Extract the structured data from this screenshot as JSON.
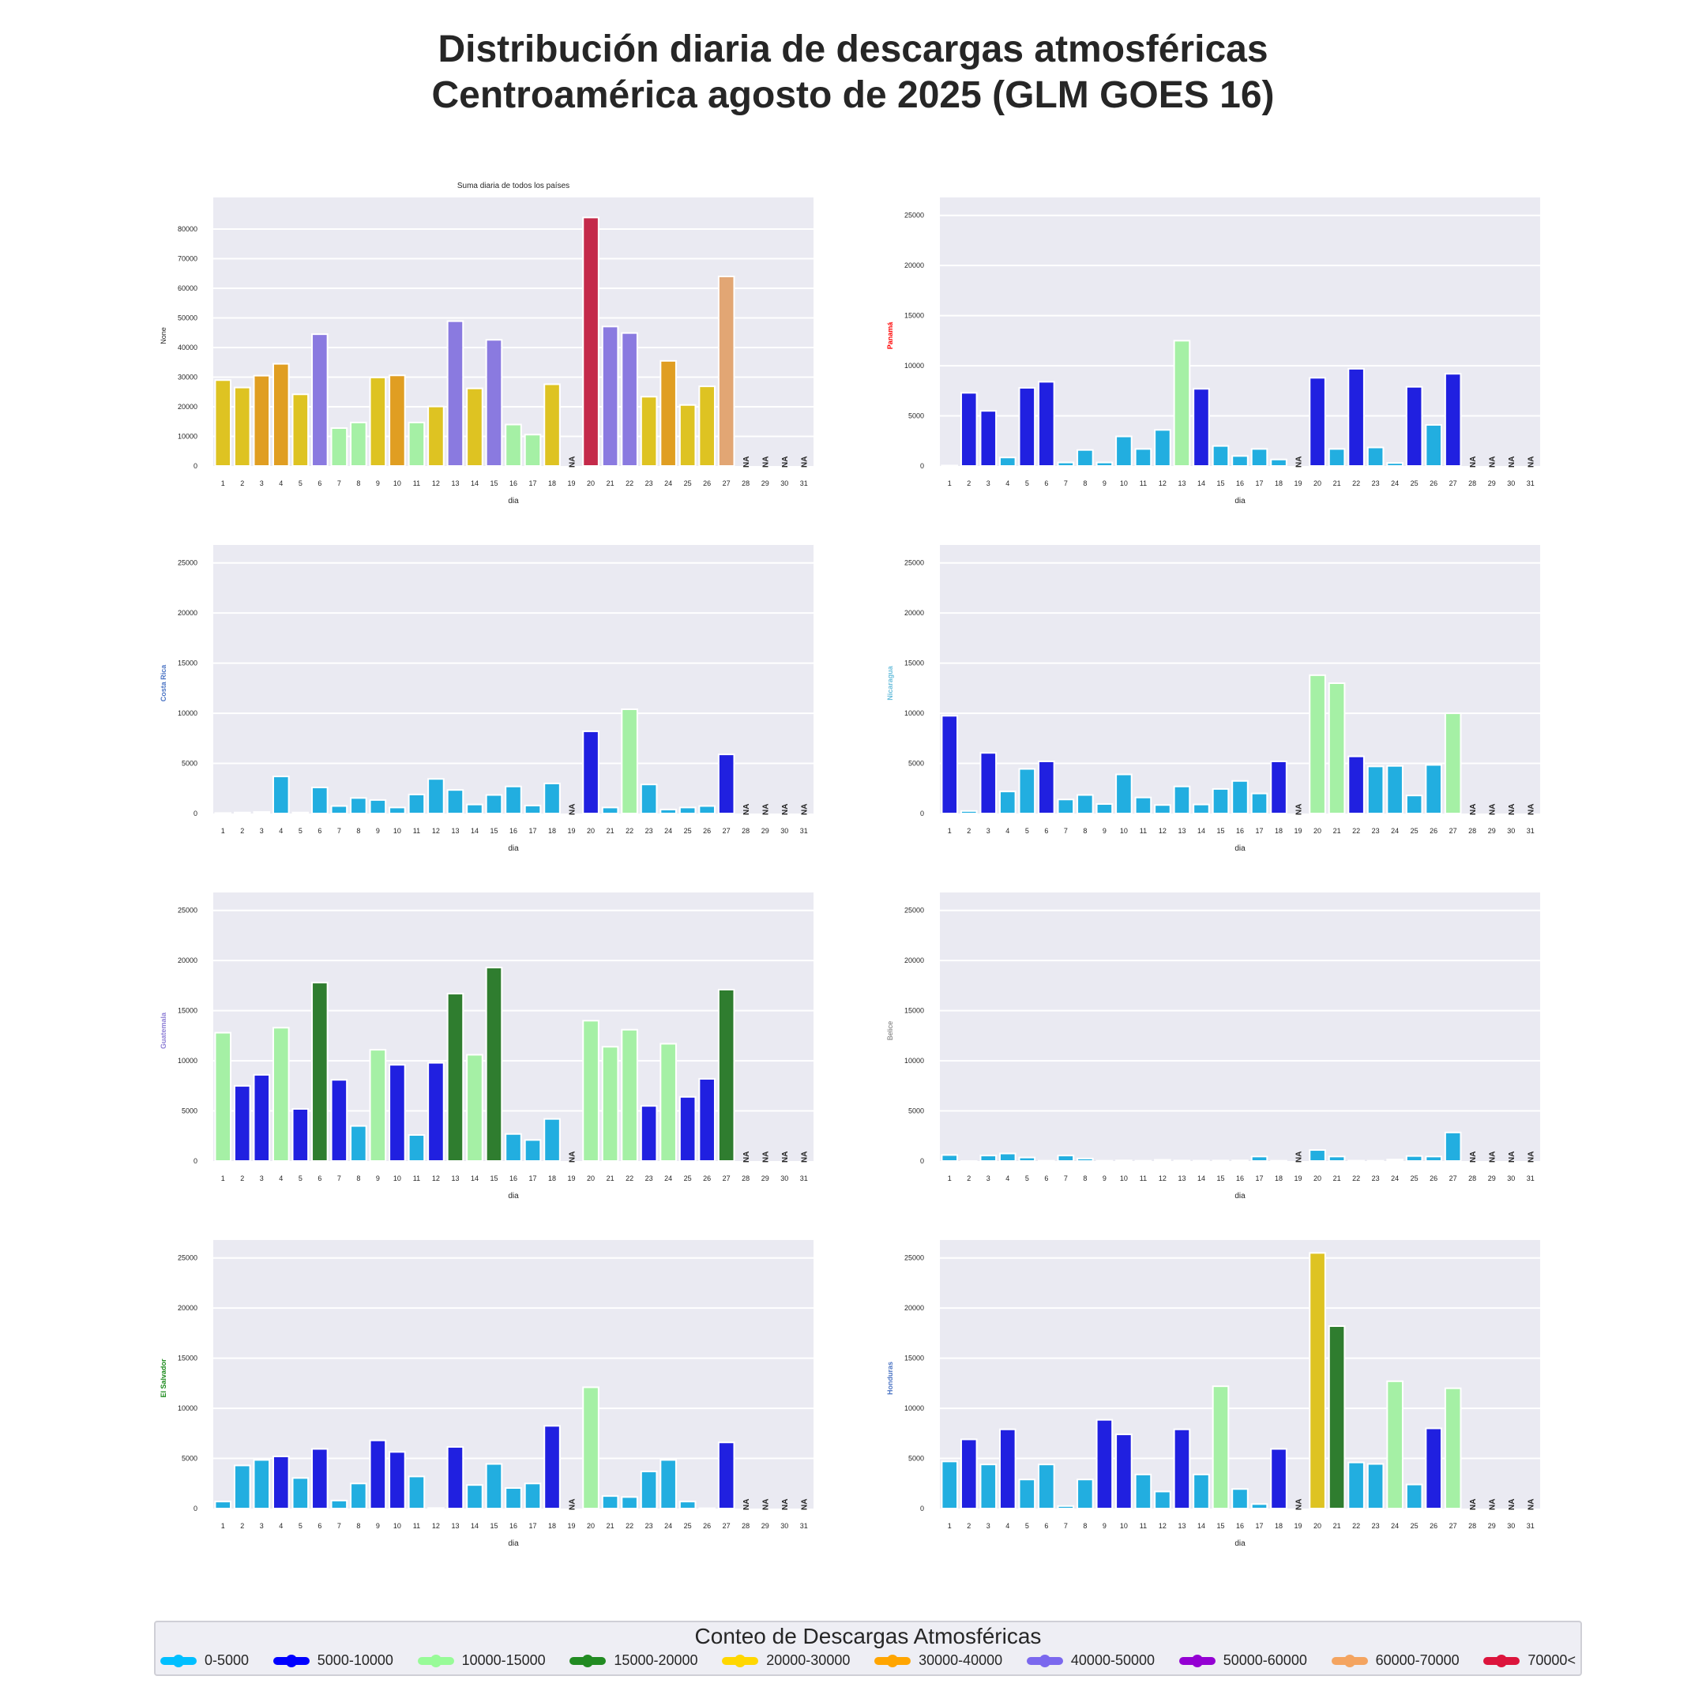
{
  "title": {
    "line1": "Distribución diaria de descargas atmosféricas",
    "line2": "Centroamérica agosto de 2025 (GLM GOES 16)"
  },
  "legend": {
    "title": "Conteo de Descargas Atmosféricas",
    "items": [
      {
        "label": "0-5000",
        "color": "#00bfff"
      },
      {
        "label": "5000-10000",
        "color": "#0000ff"
      },
      {
        "label": "10000-15000",
        "color": "#98fb98"
      },
      {
        "label": "15000-20000",
        "color": "#228b22"
      },
      {
        "label": "20000-30000",
        "color": "#ffd700"
      },
      {
        "label": "30000-40000",
        "color": "#ffa500"
      },
      {
        "label": "40000-50000",
        "color": "#7b68ee"
      },
      {
        "label": "50000-60000",
        "color": "#9400d3"
      },
      {
        "label": "60000-70000",
        "color": "#f4a460"
      },
      {
        "label": "70000<",
        "color": "#dc143c"
      }
    ]
  },
  "bin_colors": {
    "0-5000": "#22aee0",
    "5000-10000": "#2020e0",
    "10000-15000": "#a5f0a5",
    "15000-20000": "#2f7d2f",
    "20000-30000": "#dec322",
    "30000-40000": "#e09e22",
    "40000-50000": "#8a7ae0",
    "50000-60000": "#8a22c2",
    "60000-70000": "#e2a674",
    "70000<": "#c42a4a"
  },
  "na_label": "NA",
  "chart_data": [
    {
      "type": "bar",
      "id": "total",
      "title": "Suma diaria de todos los países",
      "xlabel": "dia",
      "ylabel": "None",
      "ylabel_color": "#262626",
      "ylim": [
        0,
        88000
      ],
      "yticks": [
        0,
        10000,
        20000,
        30000,
        40000,
        50000,
        60000,
        70000,
        80000
      ],
      "categories": [
        "1",
        "2",
        "3",
        "4",
        "5",
        "6",
        "7",
        "8",
        "9",
        "10",
        "11",
        "12",
        "13",
        "14",
        "15",
        "16",
        "17",
        "18",
        "19",
        "20",
        "21",
        "22",
        "23",
        "24",
        "25",
        "26",
        "27",
        "28",
        "29",
        "30",
        "31"
      ],
      "values": [
        29000,
        26500,
        30500,
        34500,
        24200,
        44500,
        12800,
        14700,
        29900,
        30600,
        14700,
        20100,
        48900,
        26200,
        42600,
        14000,
        10600,
        27600,
        null,
        83900,
        47100,
        44900,
        23400,
        35500,
        20600,
        26900,
        64000,
        null,
        null,
        null,
        null
      ]
    },
    {
      "type": "bar",
      "id": "panama",
      "title": "",
      "xlabel": "dia",
      "ylabel": "Panamá",
      "ylabel_color": "#ff0000",
      "ylim": [
        0,
        26000
      ],
      "yticks": [
        0,
        5000,
        10000,
        15000,
        20000,
        25000
      ],
      "categories": [
        "1",
        "2",
        "3",
        "4",
        "5",
        "6",
        "7",
        "8",
        "9",
        "10",
        "11",
        "12",
        "13",
        "14",
        "15",
        "16",
        "17",
        "18",
        "19",
        "20",
        "21",
        "22",
        "23",
        "24",
        "25",
        "26",
        "27",
        "28",
        "29",
        "30",
        "31"
      ],
      "values": [
        50,
        7300,
        5500,
        850,
        7800,
        8400,
        350,
        1600,
        350,
        2950,
        1700,
        3600,
        12500,
        7700,
        2000,
        1000,
        1700,
        650,
        null,
        8800,
        1700,
        9700,
        1850,
        300,
        7900,
        4100,
        9200,
        null,
        null,
        null,
        null
      ]
    },
    {
      "type": "bar",
      "id": "costa-rica",
      "title": "",
      "xlabel": "dia",
      "ylabel": "Costa Rica",
      "ylabel_color": "#4b74c4",
      "ylim": [
        0,
        26000
      ],
      "yticks": [
        0,
        5000,
        10000,
        15000,
        20000,
        25000
      ],
      "categories": [
        "1",
        "2",
        "3",
        "4",
        "5",
        "6",
        "7",
        "8",
        "9",
        "10",
        "11",
        "12",
        "13",
        "14",
        "15",
        "16",
        "17",
        "18",
        "19",
        "20",
        "21",
        "22",
        "23",
        "24",
        "25",
        "26",
        "27",
        "28",
        "29",
        "30",
        "31"
      ],
      "values": [
        50,
        100,
        150,
        3700,
        100,
        2600,
        750,
        1550,
        1350,
        600,
        1900,
        3450,
        2350,
        900,
        1850,
        2700,
        800,
        3000,
        null,
        8200,
        600,
        10400,
        2900,
        400,
        600,
        750,
        5900,
        null,
        null,
        null,
        null
      ]
    },
    {
      "type": "bar",
      "id": "nicaragua",
      "title": "",
      "xlabel": "dia",
      "ylabel": "Nicaragua",
      "ylabel_color": "#6cbfdc",
      "ylim": [
        0,
        26000
      ],
      "yticks": [
        0,
        5000,
        10000,
        15000,
        20000,
        25000
      ],
      "categories": [
        "1",
        "2",
        "3",
        "4",
        "5",
        "6",
        "7",
        "8",
        "9",
        "10",
        "11",
        "12",
        "13",
        "14",
        "15",
        "16",
        "17",
        "18",
        "19",
        "20",
        "21",
        "22",
        "23",
        "24",
        "25",
        "26",
        "27",
        "28",
        "29",
        "30",
        "31"
      ],
      "values": [
        9750,
        250,
        6050,
        2200,
        4450,
        5200,
        1400,
        1850,
        950,
        3900,
        1600,
        850,
        2700,
        900,
        2450,
        3250,
        2000,
        5200,
        null,
        13800,
        13000,
        5700,
        4700,
        4750,
        1800,
        4850,
        10000,
        null,
        null,
        null,
        null
      ]
    },
    {
      "type": "bar",
      "id": "guatemala",
      "title": "",
      "xlabel": "dia",
      "ylabel": "Guatemala",
      "ylabel_color": "#8e7fd6",
      "ylim": [
        0,
        26000
      ],
      "yticks": [
        0,
        5000,
        10000,
        15000,
        20000,
        25000
      ],
      "categories": [
        "1",
        "2",
        "3",
        "4",
        "5",
        "6",
        "7",
        "8",
        "9",
        "10",
        "11",
        "12",
        "13",
        "14",
        "15",
        "16",
        "17",
        "18",
        "19",
        "20",
        "21",
        "22",
        "23",
        "24",
        "25",
        "26",
        "27",
        "28",
        "29",
        "30",
        "31"
      ],
      "values": [
        12800,
        7500,
        8600,
        13300,
        5200,
        17800,
        8100,
        3500,
        11100,
        9600,
        2600,
        9800,
        16700,
        10600,
        19300,
        2700,
        2100,
        4200,
        null,
        14000,
        11400,
        13100,
        5500,
        11700,
        6400,
        8200,
        17100,
        null,
        null,
        null,
        null
      ]
    },
    {
      "type": "bar",
      "id": "belice",
      "title": "",
      "xlabel": "dia",
      "ylabel": "Belice",
      "ylabel_color": "#707070",
      "ylim": [
        0,
        26000
      ],
      "yticks": [
        0,
        5000,
        10000,
        15000,
        20000,
        25000
      ],
      "categories": [
        "1",
        "2",
        "3",
        "4",
        "5",
        "6",
        "7",
        "8",
        "9",
        "10",
        "11",
        "12",
        "13",
        "14",
        "15",
        "16",
        "17",
        "18",
        "19",
        "20",
        "21",
        "22",
        "23",
        "24",
        "25",
        "26",
        "27",
        "28",
        "29",
        "30",
        "31"
      ],
      "values": [
        600,
        0,
        550,
        750,
        350,
        30,
        550,
        250,
        30,
        60,
        30,
        120,
        50,
        40,
        50,
        60,
        450,
        30,
        null,
        1100,
        450,
        40,
        30,
        150,
        500,
        450,
        2850,
        null,
        null,
        null,
        null
      ]
    },
    {
      "type": "bar",
      "id": "el-salvador",
      "title": "",
      "xlabel": "dia",
      "ylabel": "El Salvador",
      "ylabel_color": "#1a8a1a",
      "ylim": [
        0,
        26000
      ],
      "yticks": [
        0,
        5000,
        10000,
        15000,
        20000,
        25000
      ],
      "categories": [
        "1",
        "2",
        "3",
        "4",
        "5",
        "6",
        "7",
        "8",
        "9",
        "10",
        "11",
        "12",
        "13",
        "14",
        "15",
        "16",
        "17",
        "18",
        "19",
        "20",
        "21",
        "22",
        "23",
        "24",
        "25",
        "26",
        "27",
        "28",
        "29",
        "30",
        "31"
      ],
      "values": [
        700,
        4300,
        4850,
        5200,
        3050,
        5950,
        800,
        2500,
        6800,
        5650,
        3200,
        50,
        6150,
        2350,
        4450,
        2050,
        2500,
        8250,
        null,
        12100,
        1250,
        1150,
        3700,
        4850,
        700,
        30,
        6600,
        null,
        null,
        null,
        null
      ]
    },
    {
      "type": "bar",
      "id": "honduras",
      "title": "",
      "xlabel": "dia",
      "ylabel": "Honduras",
      "ylabel_color": "#4b74c4",
      "ylim": [
        0,
        26000
      ],
      "yticks": [
        0,
        5000,
        10000,
        15000,
        20000,
        25000
      ],
      "categories": [
        "1",
        "2",
        "3",
        "4",
        "5",
        "6",
        "7",
        "8",
        "9",
        "10",
        "11",
        "12",
        "13",
        "14",
        "15",
        "16",
        "17",
        "18",
        "19",
        "20",
        "21",
        "22",
        "23",
        "24",
        "25",
        "26",
        "27",
        "28",
        "29",
        "30",
        "31"
      ],
      "values": [
        4700,
        6900,
        4400,
        7900,
        2900,
        4400,
        250,
        2900,
        8850,
        7400,
        3400,
        1700,
        7900,
        3400,
        12200,
        1950,
        450,
        5950,
        null,
        25500,
        18200,
        4600,
        4450,
        12700,
        2400,
        8000,
        12000,
        null,
        null,
        null,
        null
      ]
    }
  ]
}
